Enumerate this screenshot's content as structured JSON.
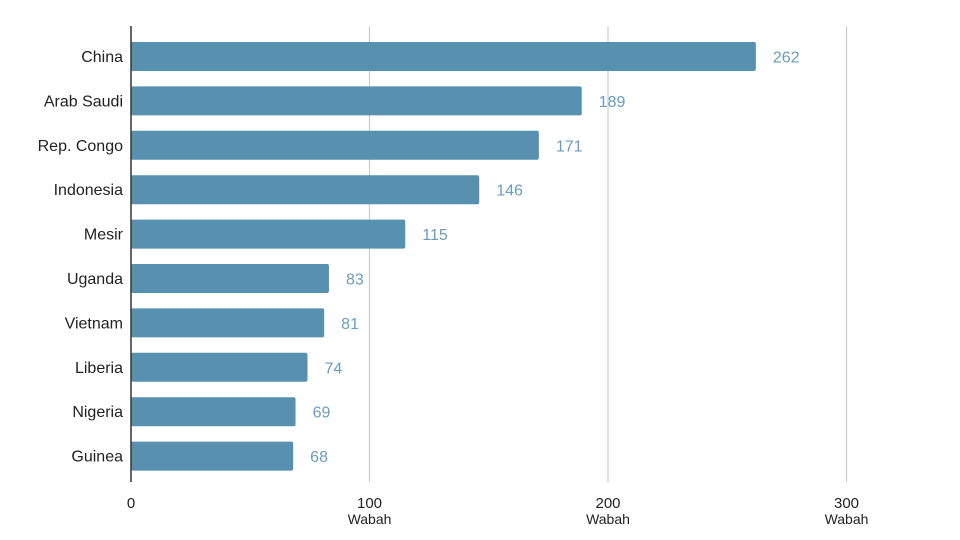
{
  "chart_data": {
    "type": "bar",
    "orientation": "horizontal",
    "title": "",
    "xlabel": "",
    "ylabel": "",
    "categories": [
      "China",
      "Arab Saudi",
      "Rep. Congo",
      "Indonesia",
      "Mesir",
      "Uganda",
      "Vietnam",
      "Liberia",
      "Nigeria",
      "Guinea"
    ],
    "values": [
      262,
      189,
      171,
      146,
      115,
      83,
      81,
      74,
      69,
      68
    ],
    "data_labels": [
      "262",
      "189",
      "171",
      "146",
      "115",
      "83",
      "81",
      "74",
      "69",
      "68"
    ],
    "xlim": [
      0,
      330
    ],
    "x_ticks": [
      {
        "value": 0,
        "label": "0",
        "unit": ""
      },
      {
        "value": 100,
        "label": "100",
        "unit": "Wabah"
      },
      {
        "value": 200,
        "label": "200",
        "unit": "Wabah"
      },
      {
        "value": 300,
        "label": "300",
        "unit": "Wabah"
      }
    ],
    "grid": true,
    "legend": "none",
    "colors": {
      "bar": "#5791AF",
      "data_label": "#6A9CBF",
      "grid": "#CCCCCC",
      "axis": "#333333",
      "text": "#222222"
    }
  }
}
